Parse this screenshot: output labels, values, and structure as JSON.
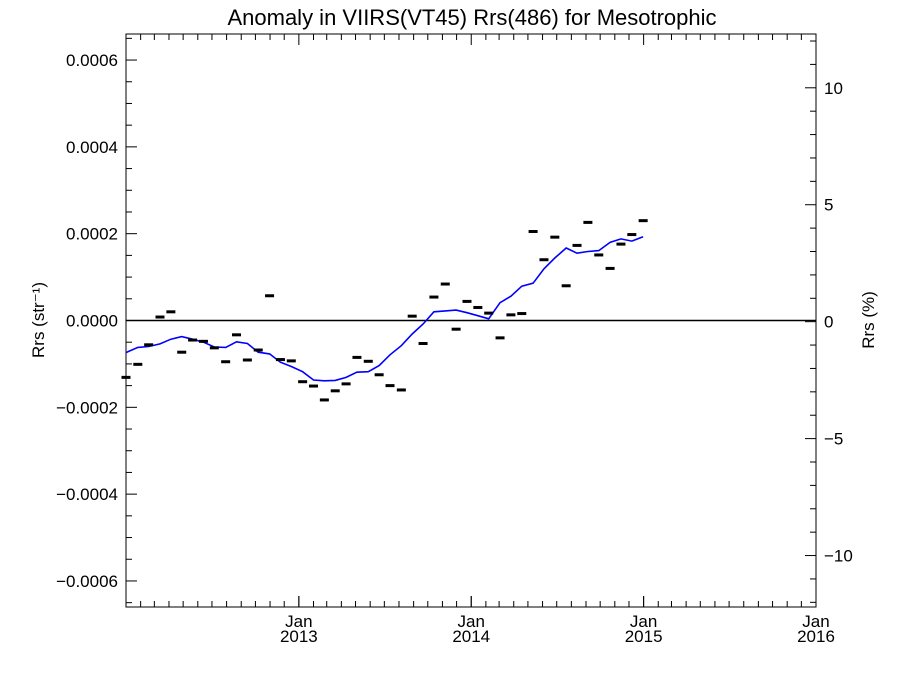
{
  "chart_data": {
    "type": "scatter",
    "title": "Anomaly in VIIRS(VT45) Rrs(486) for Mesotrophic",
    "ylabel_left": "Rrs (str⁻¹)",
    "ylabel_right": "Rrs (%)",
    "xlabel": "",
    "xlim": [
      "2012-01-01",
      "2016-01-01"
    ],
    "ylim_left": [
      -0.00066,
      0.00066
    ],
    "ylim_right": [
      -12.2,
      12.3
    ],
    "grid": false,
    "y_ticks_left": [
      {
        "value": 0.0006,
        "label": "0.0006"
      },
      {
        "value": 0.0004,
        "label": "0.0004"
      },
      {
        "value": 0.0002,
        "label": "0.0002"
      },
      {
        "value": 0.0,
        "label": "0.0000"
      },
      {
        "value": -0.0002,
        "label": "−0.0002"
      },
      {
        "value": -0.0004,
        "label": "−0.0004"
      },
      {
        "value": -0.0006,
        "label": "−0.0006"
      }
    ],
    "y_ticks_right": [
      {
        "value": 10,
        "label": "10"
      },
      {
        "value": 5,
        "label": "5"
      },
      {
        "value": 0,
        "label": "0"
      },
      {
        "value": -5,
        "label": "−5"
      },
      {
        "value": -10,
        "label": "−10"
      }
    ],
    "x_ticks": [
      {
        "date": "2013-01-01",
        "month": "Jan",
        "year": "2013"
      },
      {
        "date": "2014-01-01",
        "month": "Jan",
        "year": "2014"
      },
      {
        "date": "2015-01-01",
        "month": "Jan",
        "year": "2015"
      },
      {
        "date": "2016-01-01",
        "month": "Jan",
        "year": "2016"
      }
    ],
    "zero_line": 0,
    "colors": {
      "line": "#0000ff",
      "markers": "#000000",
      "axes": "#000000"
    },
    "series": [
      {
        "type": "scatter",
        "marker": "dash",
        "points": [
          [
            "2012-01-01",
            -0.000131
          ],
          [
            "2012-01-26",
            -0.000101
          ],
          [
            "2012-02-18",
            -5.6e-05
          ],
          [
            "2012-03-13",
            8e-06
          ],
          [
            "2012-04-05",
            2e-05
          ],
          [
            "2012-04-28",
            -7.3e-05
          ],
          [
            "2012-05-21",
            -4.5e-05
          ],
          [
            "2012-06-13",
            -4.8e-05
          ],
          [
            "2012-07-06",
            -6.3e-05
          ],
          [
            "2012-07-30",
            -9.5e-05
          ],
          [
            "2012-08-22",
            -3.3e-05
          ],
          [
            "2012-09-14",
            -9.1e-05
          ],
          [
            "2012-10-07",
            -6.8e-05
          ],
          [
            "2012-10-31",
            5.7e-05
          ],
          [
            "2012-11-23",
            -9e-05
          ],
          [
            "2012-12-16",
            -9.3e-05
          ],
          [
            "2013-01-09",
            -0.000141
          ],
          [
            "2013-02-01",
            -0.000151
          ],
          [
            "2013-02-24",
            -0.000183
          ],
          [
            "2013-03-19",
            -0.000162
          ],
          [
            "2013-04-11",
            -0.000146
          ],
          [
            "2013-05-04",
            -8.5e-05
          ],
          [
            "2013-05-28",
            -9.4e-05
          ],
          [
            "2013-06-20",
            -0.000125
          ],
          [
            "2013-07-13",
            -0.00015
          ],
          [
            "2013-08-06",
            -0.00016
          ],
          [
            "2013-08-29",
            1e-05
          ],
          [
            "2013-09-21",
            -5.3e-05
          ],
          [
            "2013-10-14",
            5.4e-05
          ],
          [
            "2013-11-07",
            8.4e-05
          ],
          [
            "2013-11-30",
            -2e-05
          ],
          [
            "2013-12-23",
            4.4e-05
          ],
          [
            "2014-01-15",
            3e-05
          ],
          [
            "2014-02-07",
            1.7e-05
          ],
          [
            "2014-03-03",
            -4e-05
          ],
          [
            "2014-03-26",
            1.3e-05
          ],
          [
            "2014-04-18",
            1.6e-05
          ],
          [
            "2014-05-12",
            0.000205
          ],
          [
            "2014-06-04",
            0.00014
          ],
          [
            "2014-06-27",
            0.000192
          ],
          [
            "2014-07-21",
            8e-05
          ],
          [
            "2014-08-13",
            0.000173
          ],
          [
            "2014-09-05",
            0.000226
          ],
          [
            "2014-09-28",
            0.000151
          ],
          [
            "2014-10-22",
            0.00012
          ],
          [
            "2014-11-14",
            0.000176
          ],
          [
            "2014-12-07",
            0.000198
          ],
          [
            "2014-12-31",
            0.00023
          ]
        ]
      },
      {
        "type": "line",
        "color": "#0000ff",
        "points": [
          [
            "2012-01-01",
            -7.4e-05
          ],
          [
            "2012-01-26",
            -6.2e-05
          ],
          [
            "2012-02-18",
            -6e-05
          ],
          [
            "2012-03-13",
            -5.4e-05
          ],
          [
            "2012-04-05",
            -4.3e-05
          ],
          [
            "2012-04-28",
            -3.7e-05
          ],
          [
            "2012-05-21",
            -4.3e-05
          ],
          [
            "2012-06-13",
            -5e-05
          ],
          [
            "2012-07-06",
            -6.1e-05
          ],
          [
            "2012-07-30",
            -6.2e-05
          ],
          [
            "2012-08-22",
            -4.9e-05
          ],
          [
            "2012-09-14",
            -5.3e-05
          ],
          [
            "2012-10-07",
            -7.3e-05
          ],
          [
            "2012-10-31",
            -7.7e-05
          ],
          [
            "2012-11-23",
            -9.6e-05
          ],
          [
            "2012-12-16",
            -0.000106
          ],
          [
            "2013-01-09",
            -0.000118
          ],
          [
            "2013-02-01",
            -0.000137
          ],
          [
            "2013-02-24",
            -0.000139
          ],
          [
            "2013-03-19",
            -0.000138
          ],
          [
            "2013-04-11",
            -0.000131
          ],
          [
            "2013-05-04",
            -0.000119
          ],
          [
            "2013-05-28",
            -0.000118
          ],
          [
            "2013-06-20",
            -0.000104
          ],
          [
            "2013-07-13",
            -7.9e-05
          ],
          [
            "2013-08-06",
            -5.8e-05
          ],
          [
            "2013-08-29",
            -3.1e-05
          ],
          [
            "2013-09-21",
            -8e-06
          ],
          [
            "2013-10-14",
            2e-05
          ],
          [
            "2013-11-07",
            2.2e-05
          ],
          [
            "2013-11-30",
            2.4e-05
          ],
          [
            "2013-12-23",
            1.8e-05
          ],
          [
            "2014-01-15",
            1.1e-05
          ],
          [
            "2014-02-07",
            4e-06
          ],
          [
            "2014-03-03",
            4.1e-05
          ],
          [
            "2014-03-26",
            5.6e-05
          ],
          [
            "2014-04-18",
            7.9e-05
          ],
          [
            "2014-05-12",
            8.6e-05
          ],
          [
            "2014-06-04",
            0.000119
          ],
          [
            "2014-06-27",
            0.000144
          ],
          [
            "2014-07-21",
            0.000167
          ],
          [
            "2014-08-13",
            0.000155
          ],
          [
            "2014-09-05",
            0.000159
          ],
          [
            "2014-09-28",
            0.000161
          ],
          [
            "2014-10-22",
            0.00018
          ],
          [
            "2014-11-14",
            0.000188
          ],
          [
            "2014-12-07",
            0.000183
          ],
          [
            "2014-12-31",
            0.000193
          ]
        ]
      }
    ]
  }
}
